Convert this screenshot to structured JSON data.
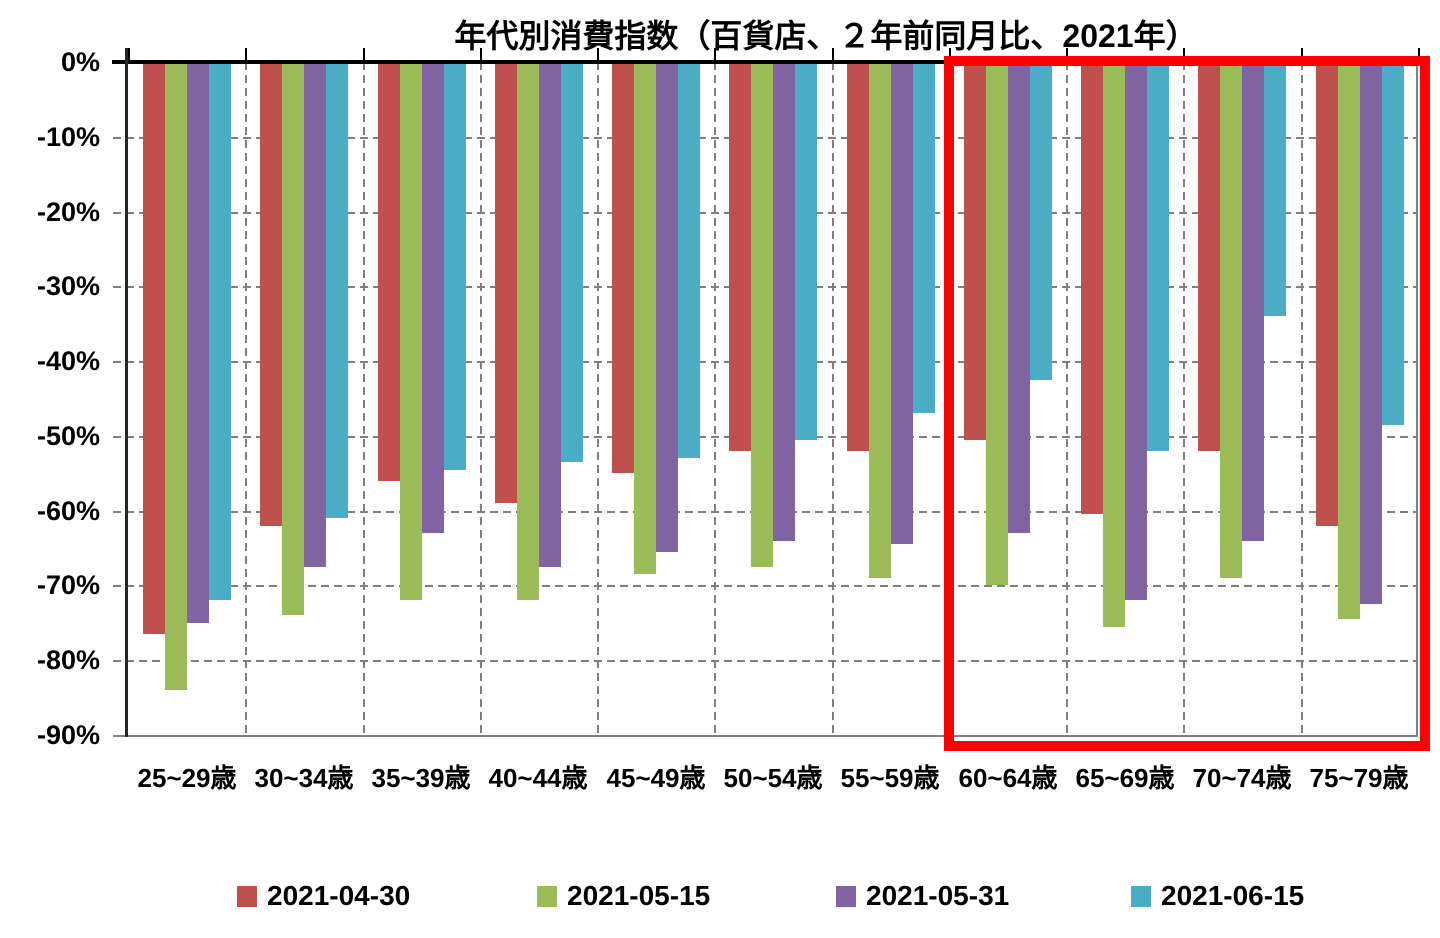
{
  "chart_data": {
    "type": "bar",
    "title": "年代別消費指数（百貨店、２年前同月比、2021年）",
    "xlabel": "",
    "ylabel": "",
    "categories": [
      "25~29歳",
      "30~34歳",
      "35~39歳",
      "40~44歳",
      "45~49歳",
      "50~54歳",
      "55~59歳",
      "60~64歳",
      "65~69歳",
      "70~74歳",
      "75~79歳"
    ],
    "series": [
      {
        "name": "2021-04-30",
        "color": "#C0504D",
        "values": [
          -76.5,
          -62,
          -56,
          -59,
          -55,
          -52,
          -52,
          -50.5,
          -60.5,
          -52,
          -62
        ]
      },
      {
        "name": "2021-05-15",
        "color": "#9BBB59",
        "values": [
          -84,
          -74,
          -72,
          -72,
          -68.5,
          -67.5,
          -69,
          -70,
          -75.5,
          -69,
          -74.5
        ]
      },
      {
        "name": "2021-05-31",
        "color": "#8064A2",
        "values": [
          -75,
          -67.5,
          -63,
          -67.5,
          -65.5,
          -64,
          -64.5,
          -63,
          -72,
          -64,
          -72.5
        ]
      },
      {
        "name": "2021-06-15",
        "color": "#4BACC6",
        "values": [
          -72,
          -61,
          -54.5,
          -53.5,
          -53,
          -50.5,
          -47,
          -42.5,
          -52,
          -34,
          -48.5
        ]
      }
    ],
    "ylim": [
      -90,
      0
    ],
    "ytick_step": 10,
    "ytick_labels": [
      "0%",
      "-10%",
      "-20%",
      "-30%",
      "-40%",
      "-50%",
      "-60%",
      "-70%",
      "-80%",
      "-90%"
    ],
    "grid": "dashed gray, horizontal and vertical between category groups",
    "legend_position": "bottom",
    "highlight": {
      "shape": "rectangle",
      "color": "#FE0000",
      "from_category": "60~64歳",
      "to_category": "75~79歳"
    }
  }
}
